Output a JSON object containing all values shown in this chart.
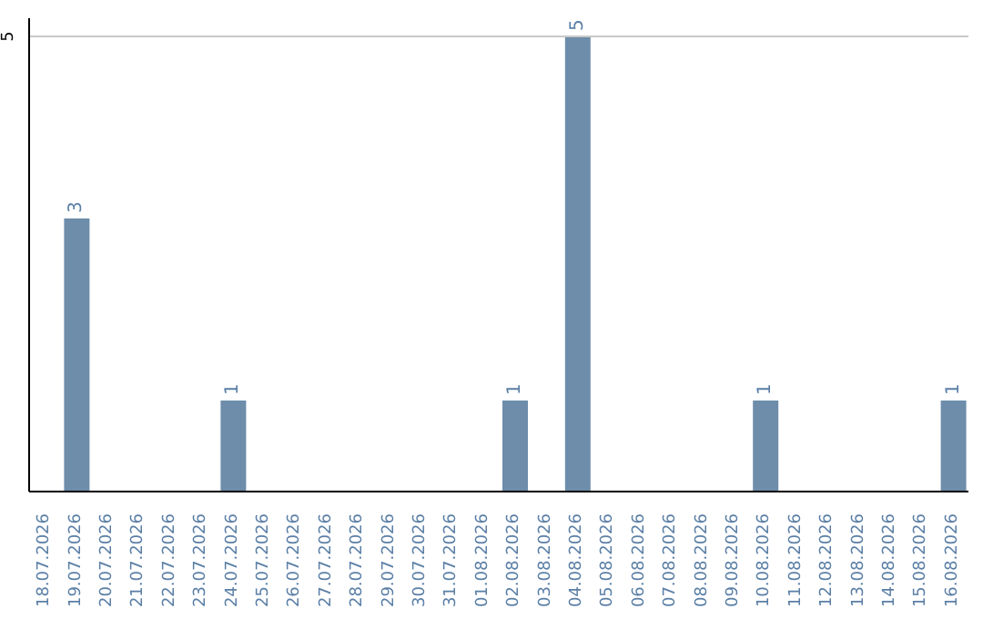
{
  "chart_data": {
    "type": "bar",
    "categories": [
      "18.07.2026",
      "19.07.2026",
      "20.07.2026",
      "21.07.2026",
      "22.07.2026",
      "23.07.2026",
      "24.07.2026",
      "25.07.2026",
      "26.07.2026",
      "27.07.2026",
      "28.07.2026",
      "29.07.2026",
      "30.07.2026",
      "31.07.2026",
      "01.08.2026",
      "02.08.2026",
      "03.08.2026",
      "04.08.2026",
      "05.08.2026",
      "06.08.2026",
      "07.08.2026",
      "08.08.2026",
      "09.08.2026",
      "10.08.2026",
      "11.08.2026",
      "12.08.2026",
      "13.08.2026",
      "14.08.2026",
      "15.08.2026",
      "16.08.2026"
    ],
    "values": [
      0,
      3,
      0,
      0,
      0,
      0,
      1,
      0,
      0,
      0,
      0,
      0,
      0,
      0,
      0,
      1,
      0,
      5,
      0,
      0,
      0,
      0,
      0,
      1,
      0,
      0,
      0,
      0,
      0,
      1
    ],
    "value_labels": [
      null,
      "3",
      null,
      null,
      null,
      null,
      "1",
      null,
      null,
      null,
      null,
      null,
      null,
      null,
      null,
      "1",
      null,
      "5",
      null,
      null,
      null,
      null,
      null,
      "1",
      null,
      null,
      null,
      null,
      null,
      "1"
    ],
    "color": "#6d8dab",
    "ylim": [
      0,
      5.2
    ],
    "yticks": [
      5
    ],
    "grid": "y"
  }
}
